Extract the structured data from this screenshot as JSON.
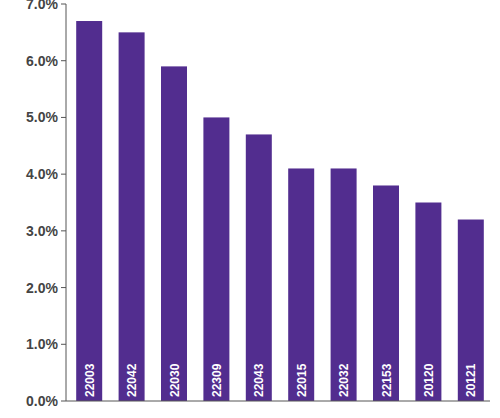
{
  "chart_data": {
    "type": "bar",
    "categories": [
      "22003",
      "22042",
      "22030",
      "22309",
      "22043",
      "22015",
      "22032",
      "22153",
      "20120",
      "20121"
    ],
    "values": [
      6.7,
      6.5,
      5.9,
      5.0,
      4.7,
      4.1,
      4.1,
      3.8,
      3.5,
      3.2
    ],
    "color": "#522d8f",
    "ylim": [
      0,
      7
    ],
    "yticks": [
      {
        "value": 0,
        "label": "0.0%"
      },
      {
        "value": 1,
        "label": "1.0%"
      },
      {
        "value": 2,
        "label": "2.0%"
      },
      {
        "value": 3,
        "label": "3.0%"
      },
      {
        "value": 4,
        "label": "4.0%"
      },
      {
        "value": 5,
        "label": "5.0%"
      },
      {
        "value": 6,
        "label": "6.0%"
      },
      {
        "value": 7,
        "label": "7.0%"
      }
    ],
    "grid": false
  }
}
